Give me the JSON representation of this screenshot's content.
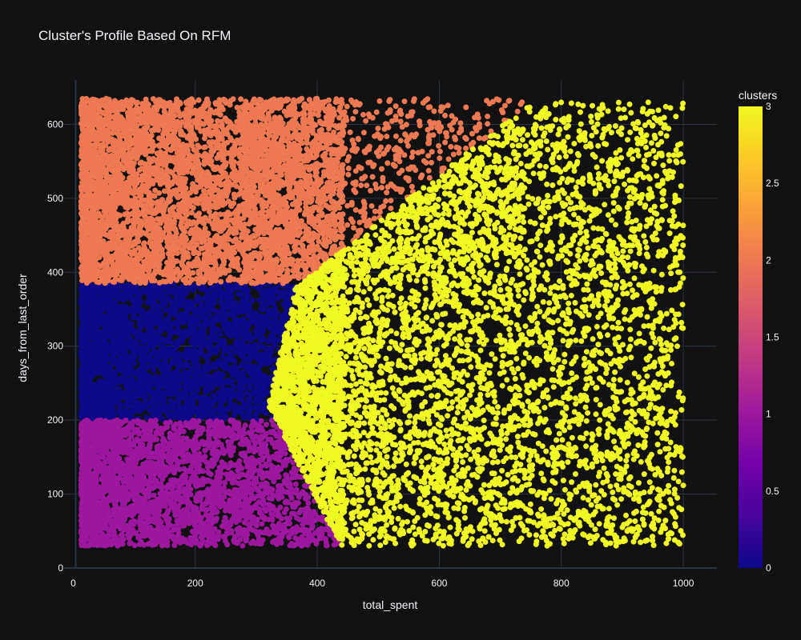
{
  "chart_data": {
    "type": "scatter",
    "title": "Cluster's Profile Based On RFM",
    "xlabel": "total_spent",
    "ylabel": "days_from_last_order",
    "xlim": [
      -15,
      1055
    ],
    "ylim": [
      0,
      660
    ],
    "x_ticks": [
      0,
      200,
      400,
      600,
      800,
      1000
    ],
    "y_ticks": [
      0,
      100,
      200,
      300,
      400,
      500,
      600
    ],
    "grid": true,
    "background": "#111111",
    "colorbar": {
      "title": "clusters",
      "range": [
        0,
        3
      ],
      "ticks": [
        0,
        0.5,
        1,
        1.5,
        2,
        2.5,
        3
      ],
      "tick_labels": [
        "0",
        "0.5",
        "1",
        "1.5",
        "2",
        "2.5",
        "3"
      ],
      "colorscale": "plasma",
      "placement": "right"
    },
    "clusters": [
      {
        "value": 0,
        "color": "#0d0887",
        "x_range": [
          13,
          375
        ],
        "y_range": [
          200,
          385
        ]
      },
      {
        "value": 1,
        "color": "#9c179e",
        "x_range": [
          13,
          440
        ],
        "y_range": [
          28,
          200
        ]
      },
      {
        "value": 2,
        "color": "#ed7953",
        "x_range": [
          13,
          740
        ],
        "y_range": [
          385,
          635
        ]
      },
      {
        "value": 3,
        "color": "#f0f921",
        "x_range": [
          320,
          1000
        ],
        "y_range": [
          30,
          630
        ]
      }
    ]
  }
}
